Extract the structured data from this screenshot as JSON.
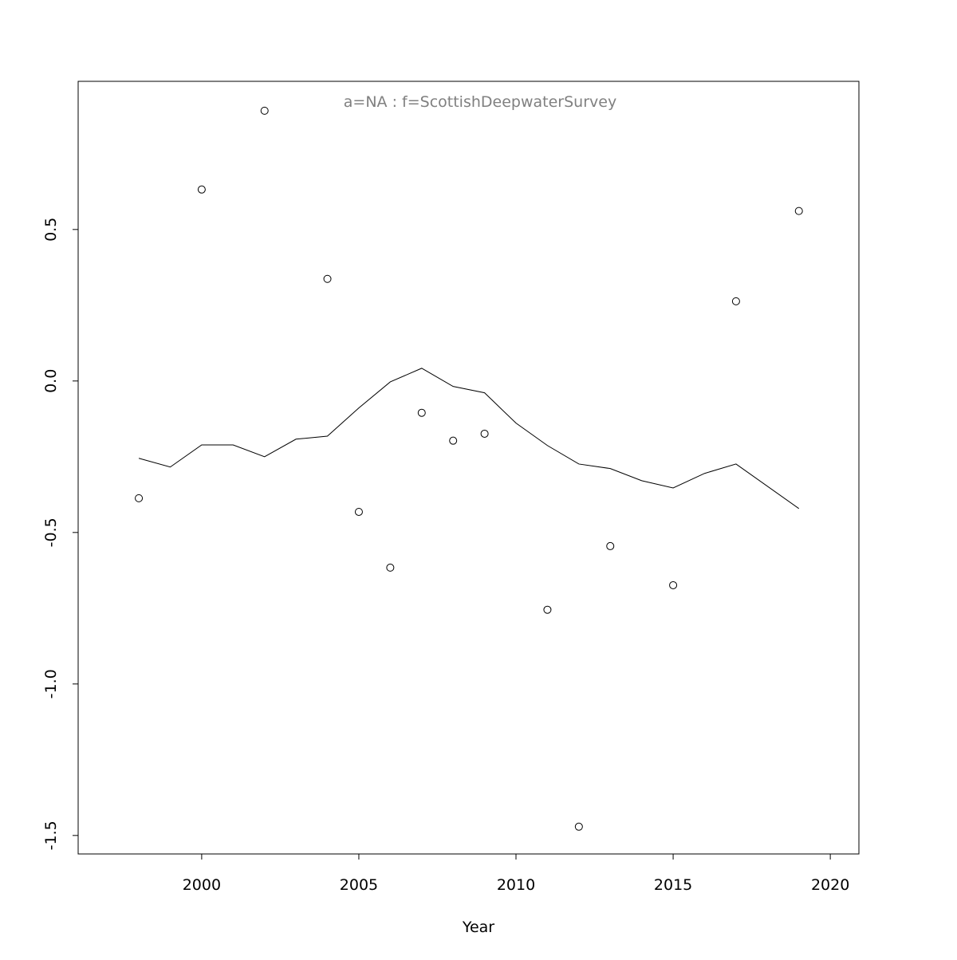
{
  "chart_data": {
    "type": "line",
    "title": "a=NA  :  f=ScottishDeepwaterSurvey",
    "title_color": "#808080",
    "xlabel": "Year",
    "xlim": [
      1996.07,
      2020.91
    ],
    "ylim": [
      -1.561,
      0.989
    ],
    "xticks": [
      2000,
      2005,
      2010,
      2015,
      2020
    ],
    "yticks": [
      {
        "value": -1.5,
        "label": "-1.5"
      },
      {
        "value": -1.0,
        "label": "-1.0"
      },
      {
        "value": -0.5,
        "label": "-0.5"
      },
      {
        "value": 0.0,
        "label": "0.0"
      },
      {
        "value": 0.5,
        "label": "0.5"
      }
    ],
    "series": [
      {
        "style": "points",
        "color": "#000000",
        "x": [
          1998,
          2000,
          2002,
          2004,
          2005,
          2006,
          2007,
          2008,
          2009,
          2011,
          2012,
          2013,
          2015,
          2017,
          2019
        ],
        "values": [
          -0.387,
          0.632,
          0.892,
          0.337,
          -0.432,
          -0.616,
          -0.105,
          -0.197,
          -0.174,
          -0.755,
          -1.471,
          -0.545,
          -0.674,
          0.263,
          0.561
        ]
      },
      {
        "style": "line",
        "color": "#000000",
        "x": [
          1998,
          1999,
          2000,
          2001,
          2002,
          2003,
          2004,
          2005,
          2006,
          2007,
          2008,
          2009,
          2010,
          2011,
          2012,
          2013,
          2014,
          2015,
          2016,
          2017,
          2019
        ],
        "values": [
          -0.255,
          -0.284,
          -0.211,
          -0.211,
          -0.25,
          -0.192,
          -0.182,
          -0.089,
          -0.003,
          0.042,
          -0.018,
          -0.039,
          -0.139,
          -0.213,
          -0.274,
          -0.289,
          -0.329,
          -0.353,
          -0.305,
          -0.274,
          -0.421
        ]
      }
    ]
  }
}
